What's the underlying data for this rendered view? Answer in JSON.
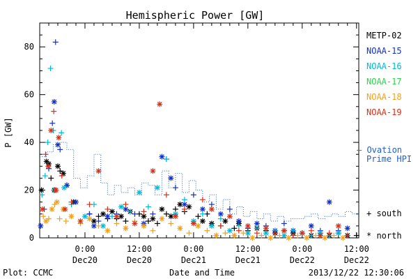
{
  "chart_data": {
    "type": "scatter",
    "title": "Hemispheric Power [GW]",
    "ylabel": "P [GW]",
    "xlabel": "Date and Time",
    "ylim": [
      0,
      90
    ],
    "xlim_hours": [
      -10,
      11.5
    ],
    "x_unit": "hours relative to 2013-12-20 00:00 UT",
    "yticks": [
      0,
      20,
      40,
      60,
      80
    ],
    "xticks": [
      {
        "x": 0,
        "time": "0:00",
        "date": "Dec20"
      },
      {
        "x": 12,
        "time": "12:00",
        "date": "Dec20"
      },
      {
        "x": 24,
        "time": "0:00",
        "date": "Dec21"
      },
      {
        "x": 36,
        "time": "12:00",
        "date": "Dec21"
      },
      {
        "x": 48,
        "time": "0:00",
        "date": "Dec22"
      },
      {
        "x": 60,
        "time": "12:00",
        "date": "Dec22"
      }
    ],
    "xlim": [
      -10,
      60.5
    ],
    "legend_position": "right",
    "series": [
      {
        "name": "METP-02",
        "color": "#000000",
        "points": [
          [
            -9.6,
            20,
            "n"
          ],
          [
            -8.5,
            32,
            "n"
          ],
          [
            -8,
            31,
            "n"
          ],
          [
            -7.5,
            25,
            "s"
          ],
          [
            -6.8,
            20,
            "n"
          ],
          [
            -6,
            30,
            "n"
          ],
          [
            -5.5,
            28,
            "s"
          ],
          [
            -4.8,
            27,
            "n"
          ],
          [
            -4,
            22,
            "s"
          ],
          [
            -2.5,
            15,
            "n"
          ],
          [
            1,
            10,
            "s"
          ],
          [
            2,
            7,
            "n"
          ],
          [
            3,
            9,
            "s"
          ],
          [
            4,
            10,
            "n"
          ],
          [
            5,
            8,
            "s"
          ],
          [
            6,
            11,
            "n"
          ],
          [
            7,
            8,
            "s"
          ],
          [
            8,
            9,
            "n"
          ],
          [
            9,
            7,
            "s"
          ],
          [
            10,
            11,
            "n"
          ],
          [
            12,
            10,
            "s"
          ],
          [
            13,
            9,
            "n"
          ],
          [
            14,
            7,
            "s"
          ],
          [
            15,
            8,
            "n"
          ],
          [
            16,
            6,
            "s"
          ],
          [
            17,
            12,
            "n"
          ],
          [
            18,
            10,
            "s"
          ],
          [
            19,
            9,
            "n"
          ],
          [
            20,
            12,
            "s"
          ],
          [
            21,
            14,
            "n"
          ],
          [
            22,
            11,
            "s"
          ],
          [
            23,
            13,
            "n"
          ],
          [
            25,
            9,
            "s"
          ],
          [
            26,
            7,
            "n"
          ],
          [
            27,
            10,
            "s"
          ],
          [
            28,
            6,
            "n"
          ],
          [
            30,
            5,
            "s"
          ],
          [
            31,
            7,
            "n"
          ],
          [
            33,
            4,
            "s"
          ],
          [
            34,
            6,
            "n"
          ],
          [
            36,
            3,
            "s"
          ],
          [
            38,
            4,
            "n"
          ],
          [
            40,
            3,
            "s"
          ],
          [
            42,
            2,
            "n"
          ],
          [
            44,
            3,
            "s"
          ],
          [
            46,
            2,
            "n"
          ],
          [
            48,
            2,
            "s"
          ],
          [
            50,
            1,
            "n"
          ],
          [
            52,
            2,
            "s"
          ],
          [
            54,
            1,
            "n"
          ],
          [
            56,
            2,
            "s"
          ],
          [
            58,
            1,
            "n"
          ],
          [
            60,
            1,
            "s"
          ]
        ]
      },
      {
        "name": "NOAA-15",
        "color": "#1030c8",
        "points": [
          [
            -9.8,
            5,
            "n"
          ],
          [
            -9,
            12,
            "s"
          ],
          [
            -8,
            29,
            "s"
          ],
          [
            -7.2,
            48,
            "s"
          ],
          [
            -6.8,
            57,
            "n"
          ],
          [
            -6.5,
            82,
            "s"
          ],
          [
            -6,
            39,
            "n"
          ],
          [
            -5.5,
            37,
            "s"
          ],
          [
            -4,
            22,
            "n"
          ],
          [
            -2,
            15,
            "n"
          ],
          [
            1,
            10,
            "s"
          ],
          [
            2,
            5,
            "n"
          ],
          [
            3,
            7,
            "s"
          ],
          [
            5,
            9,
            "n"
          ],
          [
            7,
            10,
            "s"
          ],
          [
            9,
            12,
            "n"
          ],
          [
            11,
            10,
            "s"
          ],
          [
            13,
            6,
            "n"
          ],
          [
            15,
            10,
            "s"
          ],
          [
            17,
            34,
            "n"
          ],
          [
            18,
            33,
            "s"
          ],
          [
            19,
            25,
            "n"
          ],
          [
            20,
            21,
            "s"
          ],
          [
            22,
            14,
            "n"
          ],
          [
            24,
            18,
            "s"
          ],
          [
            26,
            12,
            "n"
          ],
          [
            28,
            14,
            "s"
          ],
          [
            30,
            10,
            "n"
          ],
          [
            32,
            12,
            "s"
          ],
          [
            34,
            7,
            "n"
          ],
          [
            36,
            4,
            "s"
          ],
          [
            38,
            6,
            "n"
          ],
          [
            40,
            5,
            "s"
          ],
          [
            42,
            3,
            "n"
          ],
          [
            44,
            6,
            "s"
          ],
          [
            46,
            3,
            "n"
          ],
          [
            48,
            2,
            "s"
          ],
          [
            50,
            5,
            "n"
          ],
          [
            52,
            3,
            "s"
          ],
          [
            54,
            15,
            "n"
          ],
          [
            56,
            3,
            "s"
          ],
          [
            58,
            4,
            "n"
          ]
        ]
      },
      {
        "name": "NOAA-16",
        "color": "#00b8d8",
        "points": [
          [
            -9.5,
            18,
            "s"
          ],
          [
            -8.8,
            26,
            "s"
          ],
          [
            -8.2,
            40,
            "s"
          ],
          [
            -7.6,
            71,
            "s"
          ],
          [
            -7,
            45,
            "s"
          ],
          [
            -6.6,
            20,
            "n"
          ],
          [
            -5.2,
            44,
            "s"
          ],
          [
            -4.6,
            21,
            "n"
          ],
          [
            -3,
            14,
            "s"
          ],
          [
            0,
            9,
            "n"
          ],
          [
            2,
            14,
            "s"
          ],
          [
            4,
            5,
            "n"
          ],
          [
            6,
            9,
            "s"
          ],
          [
            8,
            13,
            "n"
          ],
          [
            10,
            11,
            "s"
          ],
          [
            12,
            19,
            "n"
          ],
          [
            14,
            13,
            "s"
          ],
          [
            16,
            21,
            "n"
          ],
          [
            18,
            33,
            "s"
          ],
          [
            20,
            10,
            "n"
          ],
          [
            22,
            16,
            "s"
          ],
          [
            24,
            7,
            "n"
          ],
          [
            26,
            10,
            "s"
          ],
          [
            28,
            5,
            "n"
          ],
          [
            30,
            8,
            "s"
          ],
          [
            32,
            3,
            "n"
          ],
          [
            34,
            5,
            "s"
          ],
          [
            36,
            2,
            "n"
          ],
          [
            38,
            4,
            "s"
          ],
          [
            40,
            2,
            "n"
          ],
          [
            42,
            3,
            "s"
          ],
          [
            44,
            1,
            "n"
          ],
          [
            46,
            3,
            "s"
          ],
          [
            48,
            2,
            "n"
          ],
          [
            50,
            1,
            "s"
          ],
          [
            52,
            2,
            "n"
          ],
          [
            54,
            1,
            "s"
          ],
          [
            56,
            2,
            "n"
          ]
        ]
      },
      {
        "name": "NOAA-17",
        "color": "#30d050",
        "points": []
      },
      {
        "name": "NOAA-18",
        "color": "#f0a020",
        "points": [
          [
            -9.2,
            9,
            "s"
          ],
          [
            -8.6,
            7,
            "n"
          ],
          [
            -8,
            8,
            "s"
          ],
          [
            -7.3,
            12,
            "n"
          ],
          [
            -6.7,
            14,
            "s"
          ],
          [
            -6.2,
            15,
            "n"
          ],
          [
            -5.6,
            8,
            "s"
          ],
          [
            -4.8,
            12,
            "n"
          ],
          [
            -4.2,
            7,
            "s"
          ],
          [
            -3,
            9,
            "n"
          ],
          [
            -1,
            6,
            "s"
          ],
          [
            1,
            8,
            "n"
          ],
          [
            3,
            5,
            "s"
          ],
          [
            5,
            3,
            "n"
          ],
          [
            7,
            6,
            "s"
          ],
          [
            9,
            4,
            "n"
          ],
          [
            11,
            7,
            "s"
          ],
          [
            13,
            5,
            "n"
          ],
          [
            15,
            3,
            "s"
          ],
          [
            17,
            8,
            "n"
          ],
          [
            19,
            6,
            "s"
          ],
          [
            21,
            4,
            "n"
          ],
          [
            23,
            2,
            "s"
          ],
          [
            25,
            5,
            "n"
          ],
          [
            27,
            3,
            "s"
          ],
          [
            29,
            1,
            "n"
          ],
          [
            31,
            2,
            "s"
          ],
          [
            33,
            1,
            "n"
          ],
          [
            35,
            2,
            "s"
          ],
          [
            37,
            0,
            "n"
          ],
          [
            39,
            1,
            "s"
          ],
          [
            41,
            0,
            "n"
          ],
          [
            43,
            1,
            "s"
          ],
          [
            45,
            0,
            "n"
          ],
          [
            47,
            1,
            "s"
          ],
          [
            49,
            0,
            "n"
          ],
          [
            51,
            1,
            "s"
          ],
          [
            53,
            0,
            "n"
          ],
          [
            55,
            1,
            "s"
          ],
          [
            57,
            0,
            "n"
          ]
        ]
      },
      {
        "name": "NOAA-19",
        "color": "#d83018",
        "points": [
          [
            -9.4,
            12,
            "n"
          ],
          [
            -8.7,
            35,
            "s"
          ],
          [
            -8.1,
            30,
            "n"
          ],
          [
            -7.5,
            45,
            "n"
          ],
          [
            -6.9,
            53,
            "s"
          ],
          [
            -6.4,
            20,
            "n"
          ],
          [
            -5.8,
            42,
            "n"
          ],
          [
            -5.1,
            26,
            "s"
          ],
          [
            -4.4,
            12,
            "n"
          ],
          [
            -3,
            15,
            "s"
          ],
          [
            -1,
            7,
            "n"
          ],
          [
            1,
            14,
            "s"
          ],
          [
            3,
            28,
            "n"
          ],
          [
            5,
            12,
            "s"
          ],
          [
            7,
            9,
            "n"
          ],
          [
            9,
            14,
            "s"
          ],
          [
            11,
            6,
            "n"
          ],
          [
            13,
            11,
            "s"
          ],
          [
            15,
            28,
            "n"
          ],
          [
            16.5,
            56,
            "n"
          ],
          [
            18,
            18,
            "s"
          ],
          [
            20,
            9,
            "n"
          ],
          [
            22,
            12,
            "s"
          ],
          [
            24,
            6,
            "n"
          ],
          [
            26,
            16,
            "s"
          ],
          [
            28,
            12,
            "n"
          ],
          [
            30,
            5,
            "s"
          ],
          [
            32,
            9,
            "n"
          ],
          [
            34,
            3,
            "s"
          ],
          [
            36,
            5,
            "n"
          ],
          [
            38,
            2,
            "s"
          ],
          [
            40,
            4,
            "n"
          ],
          [
            42,
            2,
            "s"
          ],
          [
            44,
            3,
            "n"
          ],
          [
            46,
            1,
            "s"
          ],
          [
            48,
            2,
            "n"
          ],
          [
            50,
            3,
            "s"
          ],
          [
            52,
            1,
            "n"
          ],
          [
            54,
            2,
            "s"
          ],
          [
            56,
            5,
            "n"
          ],
          [
            58,
            1,
            "s"
          ]
        ]
      }
    ],
    "ovation": {
      "name_line1": "— Ovation",
      "name_line2": "Prime HPI",
      "color": "#2060d0",
      "steps": [
        [
          -10,
          34
        ],
        [
          -8.5,
          36
        ],
        [
          -7,
          39
        ],
        [
          -5.5,
          40
        ],
        [
          -4,
          37
        ],
        [
          -2.5,
          25
        ],
        [
          -1,
          21
        ],
        [
          0.5,
          26
        ],
        [
          2,
          35
        ],
        [
          3.5,
          23
        ],
        [
          5,
          18
        ],
        [
          6.5,
          22
        ],
        [
          8,
          19
        ],
        [
          9.5,
          21
        ],
        [
          11,
          18
        ],
        [
          12.5,
          23
        ],
        [
          14,
          22
        ],
        [
          15.5,
          18
        ],
        [
          17,
          28
        ],
        [
          18.5,
          21
        ],
        [
          20,
          27
        ],
        [
          21.5,
          19
        ],
        [
          23,
          24
        ],
        [
          24.5,
          20
        ],
        [
          26,
          15
        ],
        [
          27.5,
          18
        ],
        [
          29,
          12
        ],
        [
          30.5,
          16
        ],
        [
          32,
          10
        ],
        [
          33.5,
          13
        ],
        [
          35,
          9
        ],
        [
          36.5,
          11
        ],
        [
          38,
          8
        ],
        [
          39.5,
          10
        ],
        [
          41,
          7
        ],
        [
          42.5,
          9
        ],
        [
          44,
          7
        ],
        [
          45.5,
          8
        ],
        [
          47,
          8
        ],
        [
          48.5,
          9
        ],
        [
          50,
          10
        ],
        [
          51.5,
          8
        ],
        [
          53,
          9
        ],
        [
          54.5,
          10
        ],
        [
          56,
          9
        ],
        [
          57.5,
          11
        ],
        [
          59,
          10
        ],
        [
          60.5,
          10
        ]
      ]
    },
    "marker_legend": [
      {
        "symbol": "+",
        "label": "south"
      },
      {
        "symbol": "*",
        "label": "north"
      }
    ]
  },
  "footer": {
    "plot_credit": "Plot: CCMC",
    "timestamp": "2013/12/22 12:30:06"
  }
}
